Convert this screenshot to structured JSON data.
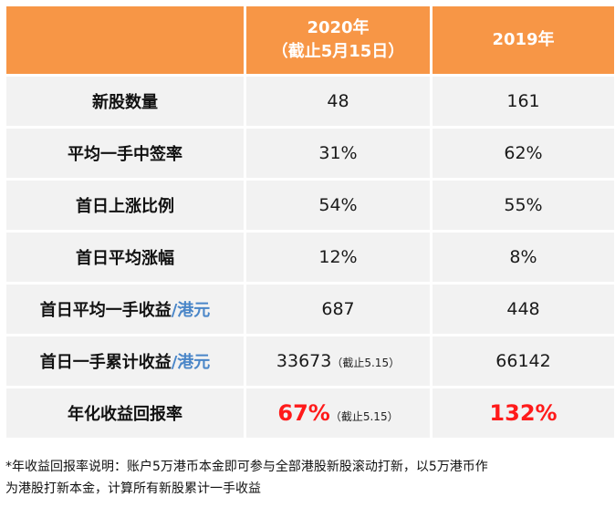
{
  "header": {
    "col2020_year": "2020年",
    "col2020_note": "（截止5月15日）",
    "col2019_year": "2019年"
  },
  "rows": [
    {
      "label": "新股数量",
      "unit": "",
      "v2020": "48",
      "n2020": "",
      "v2019": "161"
    },
    {
      "label": "平均一手中签率",
      "unit": "",
      "v2020": "31%",
      "n2020": "",
      "v2019": "62%"
    },
    {
      "label": "首日上涨比例",
      "unit": "",
      "v2020": "54%",
      "n2020": "",
      "v2019": "55%"
    },
    {
      "label": "首日平均涨幅",
      "unit": "",
      "v2020": "12%",
      "n2020": "",
      "v2019": "8%"
    },
    {
      "label": "首日平均一手收益",
      "unit": "/港元",
      "v2020": "687",
      "n2020": "",
      "v2019": "448"
    },
    {
      "label": "首日一手累计收益",
      "unit": "/港元",
      "v2020": "33673",
      "n2020": "（截止5.15）",
      "v2019": "66142"
    },
    {
      "label": "年化收益回报率",
      "unit": "",
      "v2020": "67%",
      "n2020": "（截止5.15）",
      "v2019": "132%"
    }
  ],
  "footnote": {
    "line1": "*年收益回报率说明：账户5万港币本金即可参与全部港股新股滚动打新，以5万港币作",
    "line2": "为港股打新本金，计算所有新股累计一手收益"
  },
  "colors": {
    "header_bg": "#f79646",
    "cell_bg": "#f2f2f2",
    "unit": "#4a86c8",
    "highlight": "#ff1a1a"
  }
}
